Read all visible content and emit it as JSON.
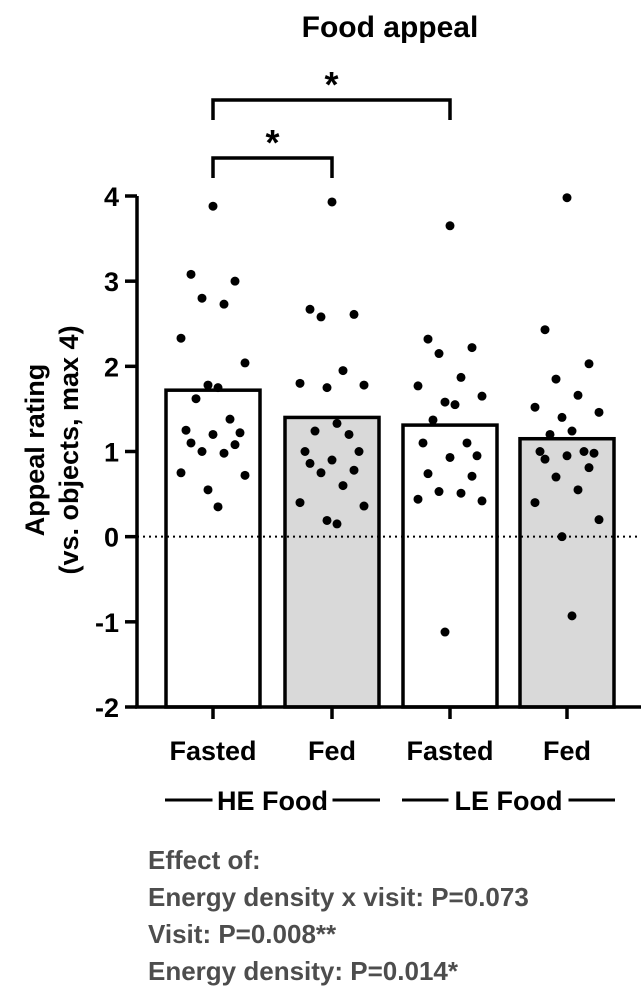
{
  "chart_data": {
    "type": "bar",
    "title": "Food appeal",
    "ylabel_line1": "Appeal rating",
    "ylabel_line2": "(vs. objects, max 4)",
    "ylim": [
      -2,
      4
    ],
    "yticks": [
      "-2",
      "-1",
      "0",
      "1",
      "2",
      "3",
      "4"
    ],
    "categories": [
      "Fasted",
      "Fed",
      "Fasted",
      "Fed"
    ],
    "groups": [
      {
        "label": "HE Food",
        "categories": [
          0,
          1
        ]
      },
      {
        "label": "LE Food",
        "categories": [
          2,
          3
        ]
      }
    ],
    "bar_colors": [
      "#ffffff",
      "#d9d9d9",
      "#ffffff",
      "#d9d9d9"
    ],
    "values": [
      1.72,
      1.4,
      1.31,
      1.15
    ],
    "points": [
      [
        3.88,
        3.08,
        3.0,
        2.8,
        2.73,
        2.33,
        2.04,
        1.78,
        1.75,
        1.62,
        1.38,
        1.25,
        1.22,
        1.2,
        1.1,
        1.08,
        1.0,
        0.98,
        0.75,
        0.72,
        0.55,
        0.35
      ],
      [
        3.93,
        2.67,
        2.61,
        2.58,
        1.95,
        1.8,
        1.78,
        1.75,
        1.33,
        1.24,
        1.2,
        1.0,
        1.0,
        0.9,
        0.86,
        0.78,
        0.75,
        0.6,
        0.4,
        0.36,
        0.19,
        0.15
      ],
      [
        3.65,
        2.32,
        2.22,
        2.15,
        1.87,
        1.77,
        1.65,
        1.58,
        1.55,
        1.37,
        1.1,
        1.1,
        0.95,
        0.93,
        0.74,
        0.71,
        0.53,
        0.51,
        0.44,
        0.42,
        -1.12
      ],
      [
        3.98,
        2.43,
        2.03,
        1.85,
        1.66,
        1.52,
        1.46,
        1.4,
        1.24,
        1.2,
        1.0,
        1.0,
        0.98,
        0.95,
        0.91,
        0.81,
        0.7,
        0.55,
        0.4,
        0.2,
        0.0,
        -0.93
      ]
    ],
    "significance": [
      {
        "from": 0,
        "to": 2,
        "label": "*"
      },
      {
        "from": 0,
        "to": 1,
        "label": "*"
      }
    ],
    "reference_line": 0,
    "grid": false
  },
  "stats": {
    "heading": "Effect of:",
    "lines": [
      "Energy density x visit: P=0.073",
      "Visit: P=0.008**",
      "Energy density: P=0.014*"
    ]
  }
}
